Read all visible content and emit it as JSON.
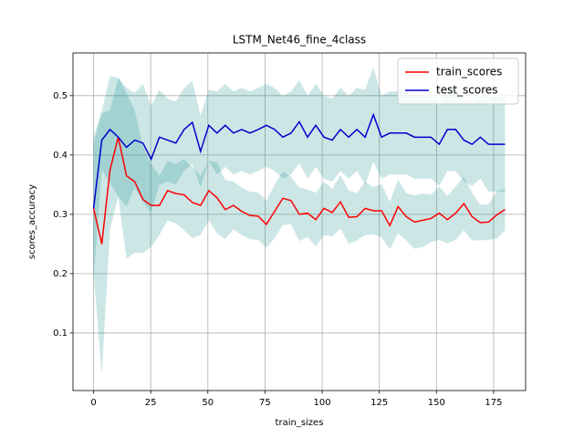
{
  "chart_data": {
    "type": "line",
    "title": "LSTM_Net46_fine_4class",
    "xlabel": "train_sizes",
    "ylabel": "scores_accuracy",
    "x": [
      0,
      3.6,
      7.2,
      10.8,
      14.4,
      18,
      21.6,
      25.2,
      28.8,
      32.4,
      36,
      39.6,
      43.2,
      46.8,
      50.4,
      54,
      57.6,
      61.2,
      64.8,
      68.4,
      72,
      75.6,
      79.2,
      82.8,
      86.4,
      90,
      93.6,
      97.2,
      100.8,
      104.4,
      108,
      111.6,
      115.2,
      118.8,
      122.4,
      126,
      129.6,
      133.2,
      136.8,
      140.4,
      144,
      147.6,
      151.2,
      154.8,
      158.4,
      162,
      165.6,
      169.2,
      172.8,
      176.4,
      180
    ],
    "series": [
      {
        "name": "train_scores",
        "color": "#ff0000",
        "band_color": "#008080",
        "values": [
          0.31,
          0.25,
          0.375,
          0.43,
          0.365,
          0.355,
          0.325,
          0.315,
          0.315,
          0.34,
          0.335,
          0.333,
          0.32,
          0.315,
          0.34,
          0.328,
          0.308,
          0.315,
          0.305,
          0.298,
          0.297,
          0.283,
          0.305,
          0.327,
          0.323,
          0.3,
          0.302,
          0.291,
          0.31,
          0.303,
          0.321,
          0.295,
          0.296,
          0.31,
          0.306,
          0.306,
          0.281,
          0.313,
          0.296,
          0.287,
          0.29,
          0.293,
          0.302,
          0.291,
          0.302,
          0.318,
          0.296,
          0.286,
          0.287,
          0.299,
          0.308
        ],
        "std": [
          0.11,
          0.22,
          0.1,
          0.1,
          0.14,
          0.12,
          0.09,
          0.07,
          0.05,
          0.05,
          0.05,
          0.06,
          0.06,
          0.05,
          0.05,
          0.06,
          0.05,
          0.04,
          0.04,
          0.04,
          0.04,
          0.04,
          0.045,
          0.045,
          0.04,
          0.045,
          0.04,
          0.045,
          0.045,
          0.04,
          0.045,
          0.045,
          0.04,
          0.045,
          0.04,
          0.045,
          0.04,
          0.045,
          0.04,
          0.045,
          0.045,
          0.04,
          0.045,
          0.04,
          0.045,
          0.045,
          0.04,
          0.03,
          0.03,
          0.04,
          0.035
        ]
      },
      {
        "name": "test_scores",
        "color": "#0000cc",
        "band_color": "#008080",
        "values": [
          0.31,
          0.425,
          0.443,
          0.43,
          0.413,
          0.425,
          0.42,
          0.393,
          0.43,
          0.425,
          0.42,
          0.443,
          0.455,
          0.406,
          0.45,
          0.437,
          0.45,
          0.437,
          0.443,
          0.437,
          0.443,
          0.45,
          0.443,
          0.43,
          0.437,
          0.456,
          0.43,
          0.45,
          0.43,
          0.425,
          0.443,
          0.43,
          0.443,
          0.43,
          0.468,
          0.43,
          0.437,
          0.437,
          0.437,
          0.43,
          0.43,
          0.43,
          0.418,
          0.443,
          0.443,
          0.425,
          0.418,
          0.43,
          0.418,
          0.418,
          0.418
        ],
        "std": [
          0.12,
          0.05,
          0.09,
          0.1,
          0.1,
          0.08,
          0.1,
          0.09,
          0.08,
          0.07,
          0.07,
          0.07,
          0.07,
          0.06,
          0.06,
          0.07,
          0.07,
          0.07,
          0.07,
          0.07,
          0.07,
          0.07,
          0.07,
          0.07,
          0.07,
          0.07,
          0.07,
          0.07,
          0.07,
          0.07,
          0.07,
          0.07,
          0.07,
          0.08,
          0.08,
          0.07,
          0.07,
          0.07,
          0.07,
          0.07,
          0.07,
          0.07,
          0.07,
          0.07,
          0.07,
          0.07,
          0.07,
          0.07,
          0.08,
          0.08,
          0.08
        ]
      }
    ],
    "xlim": [
      -9,
      189
    ],
    "ylim": [
      0.003,
      0.572
    ],
    "xticks": [
      0,
      25,
      50,
      75,
      100,
      125,
      150,
      175
    ],
    "yticks": [
      0.1,
      0.2,
      0.3,
      0.4,
      0.5
    ],
    "grid": true,
    "legend": "upper right"
  }
}
